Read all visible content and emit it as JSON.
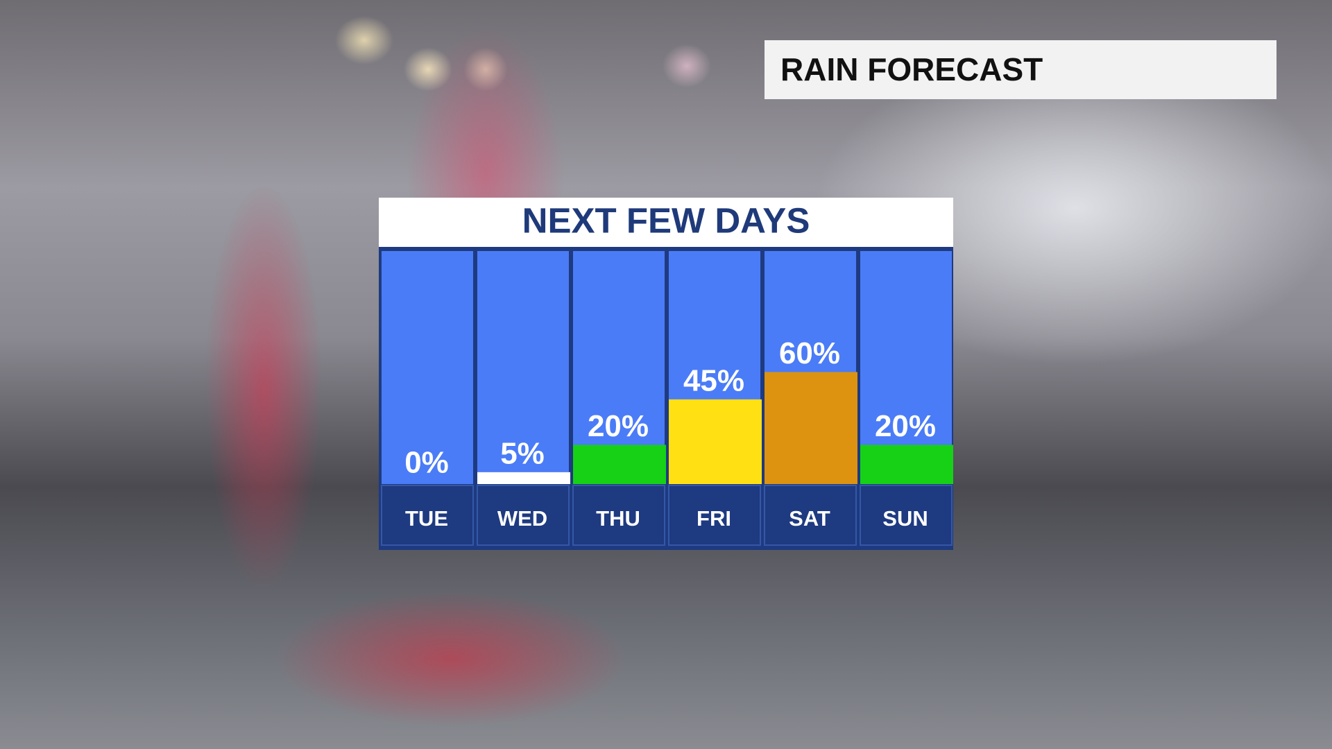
{
  "header": {
    "title": "RAIN FORECAST"
  },
  "chart_data": {
    "type": "bar",
    "title": "NEXT FEW DAYS",
    "categories": [
      "TUE",
      "WED",
      "THU",
      "FRI",
      "SAT",
      "SUN"
    ],
    "values": [
      0,
      5,
      20,
      45,
      60,
      20
    ],
    "value_labels": [
      "0%",
      "5%",
      "20%",
      "45%",
      "60%",
      "20%"
    ],
    "colors": [
      "#ffffff",
      "#ffffff",
      "#17d117",
      "#ffe012",
      "#dd930f",
      "#17d117"
    ],
    "ylim": [
      0,
      128
    ]
  }
}
